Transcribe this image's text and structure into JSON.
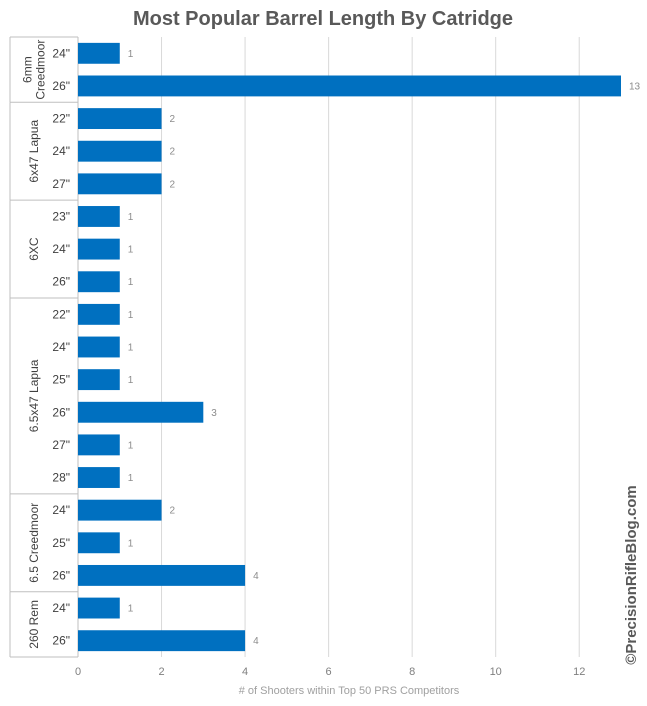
{
  "chart_data": {
    "type": "bar",
    "orientation": "horizontal",
    "title": "Most Popular Barrel Length By Catridge",
    "xlabel": "# of Shooters within Top 50 PRS Competitors",
    "ylabel": "",
    "xlim": [
      0,
      13
    ],
    "x_ticks": [
      "0",
      "2",
      "4",
      "6",
      "8",
      "10",
      "12"
    ],
    "grid": true,
    "bar_color": "#0070C0",
    "groups": [
      {
        "name": "6mm Creedmoor",
        "lines": [
          "6mm",
          "Creedmoor"
        ],
        "categories": [
          "24\"",
          "26\""
        ],
        "values": [
          1,
          13
        ]
      },
      {
        "name": "6x47 Lapua",
        "lines": [
          "6x47 Lapua"
        ],
        "categories": [
          "22\"",
          "24\"",
          "27\""
        ],
        "values": [
          2,
          2,
          2
        ]
      },
      {
        "name": "6XC",
        "lines": [
          "6XC"
        ],
        "categories": [
          "23\"",
          "24\"",
          "26\""
        ],
        "values": [
          1,
          1,
          1
        ]
      },
      {
        "name": "6.5x47 Lapua",
        "lines": [
          "6.5x47 Lapua"
        ],
        "categories": [
          "22\"",
          "24\"",
          "25\"",
          "26\"",
          "27\"",
          "28\""
        ],
        "values": [
          1,
          1,
          1,
          3,
          1,
          1
        ]
      },
      {
        "name": "6.5 Creedmoor",
        "lines": [
          "6.5 Creedmoor"
        ],
        "categories": [
          "24\"",
          "25\"",
          "26\""
        ],
        "values": [
          2,
          1,
          4
        ]
      },
      {
        "name": "260 Rem",
        "lines": [
          "260 Rem"
        ],
        "categories": [
          "24\"",
          "26\""
        ],
        "values": [
          1,
          4
        ]
      }
    ]
  },
  "watermark": "©PrecisionRifleBlog.com"
}
